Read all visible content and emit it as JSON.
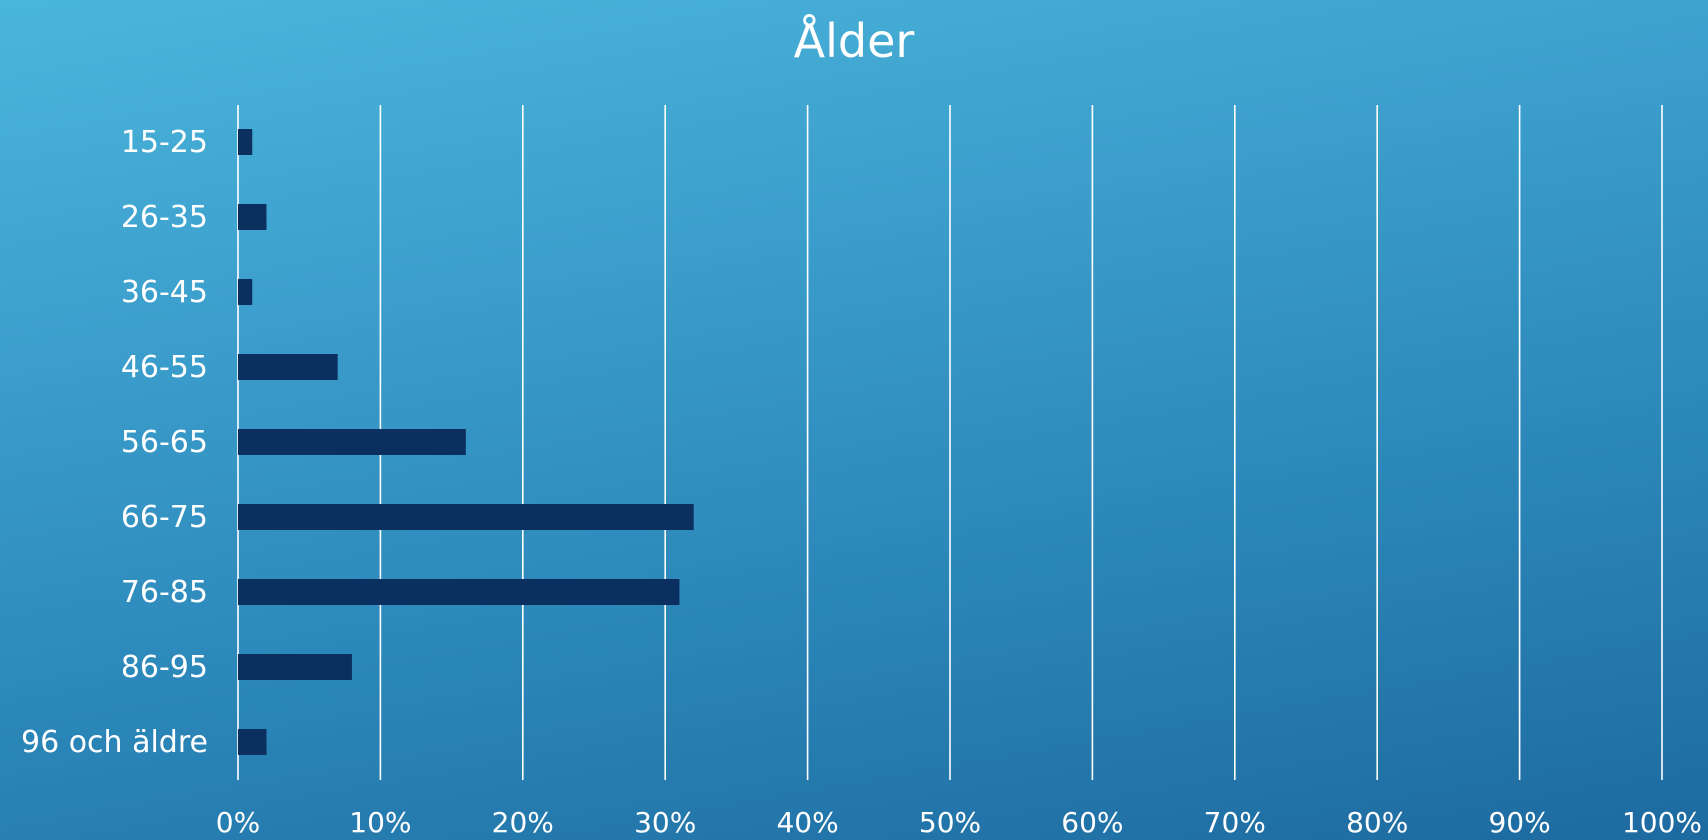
{
  "chart_data": {
    "type": "bar",
    "orientation": "horizontal",
    "title": "Ålder",
    "xlabel": "",
    "ylabel": "",
    "categories": [
      "15-25",
      "26-35",
      "36-45",
      "46-55",
      "56-65",
      "66-75",
      "76-85",
      "86-95",
      "96 och äldre"
    ],
    "values": [
      1,
      2,
      1,
      7,
      16,
      32,
      31,
      8,
      2
    ],
    "xlim": [
      0,
      100
    ],
    "x_ticks": [
      "0%",
      "10%",
      "20%",
      "30%",
      "40%",
      "50%",
      "60%",
      "70%",
      "80%",
      "90%",
      "100%"
    ],
    "grid": true,
    "legend": "none",
    "colors": {
      "bar": "#0b2f5e",
      "grid": "#ffffff",
      "text": "#ffffff"
    }
  }
}
